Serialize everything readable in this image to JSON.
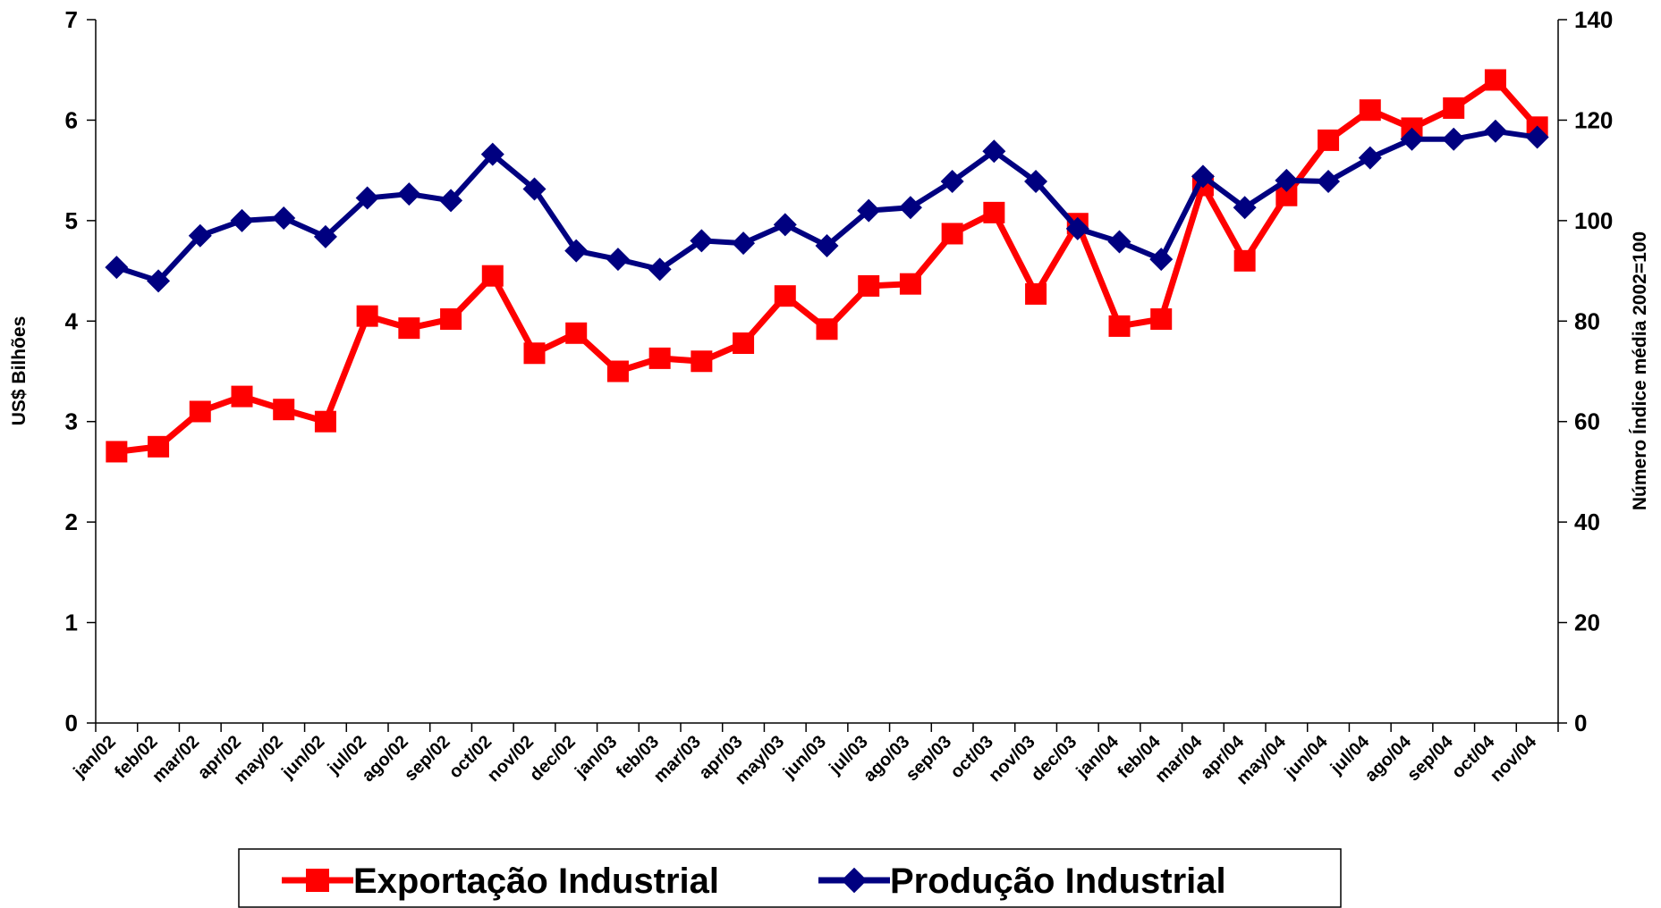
{
  "chart_data": {
    "type": "line",
    "y_label": "US$ Bilhões",
    "y2_label": "Número Índice média 2002=100",
    "categories": [
      "jan/02",
      "feb/02",
      "mar/02",
      "apr/02",
      "may/02",
      "jun/02",
      "jul/02",
      "ago/02",
      "sep/02",
      "oct/02",
      "nov/02",
      "dec/02",
      "jan/03",
      "feb/03",
      "mar/03",
      "apr/03",
      "may/03",
      "jun/03",
      "jul/03",
      "ago/03",
      "sep/03",
      "oct/03",
      "nov/03",
      "dec/03",
      "jan/04",
      "feb/04",
      "mar/04",
      "apr/04",
      "may/04",
      "jun/04",
      "jul/04",
      "ago/04",
      "sep/04",
      "oct/04",
      "nov/04"
    ],
    "series": [
      {
        "name": "Exportação Industrial",
        "color": "#ff0000",
        "marker": "square",
        "axis": "y",
        "values": [
          2.7,
          2.75,
          3.1,
          3.25,
          3.12,
          3.0,
          4.05,
          3.93,
          4.02,
          4.45,
          3.68,
          3.88,
          3.5,
          3.63,
          3.6,
          3.78,
          4.25,
          3.92,
          4.35,
          4.37,
          4.87,
          5.08,
          4.27,
          4.97,
          3.95,
          4.02,
          5.35,
          4.6,
          5.25,
          5.8,
          6.1,
          5.92,
          6.12,
          6.4,
          5.93
        ]
      },
      {
        "name": "Produção Industrial",
        "color": "#000080",
        "marker": "diamond",
        "axis": "y2",
        "values": [
          90.7,
          88,
          97,
          100,
          100.5,
          96.8,
          104.5,
          105.3,
          104,
          113.2,
          106.3,
          94,
          92.3,
          90.3,
          96,
          95.5,
          99.2,
          95,
          102,
          102.6,
          107.8,
          113.8,
          107.8,
          98.4,
          95.8,
          92.3,
          108.8,
          102.6,
          108,
          107.8,
          112.5,
          116.2,
          116.2,
          117.8,
          116.6
        ]
      }
    ],
    "ylim": [
      0,
      7
    ],
    "yticks": [
      0,
      1,
      2,
      3,
      4,
      5,
      6,
      7
    ],
    "y2lim": [
      0,
      140
    ],
    "y2ticks": [
      0,
      20,
      40,
      60,
      80,
      100,
      120,
      140
    ],
    "grid": false
  }
}
